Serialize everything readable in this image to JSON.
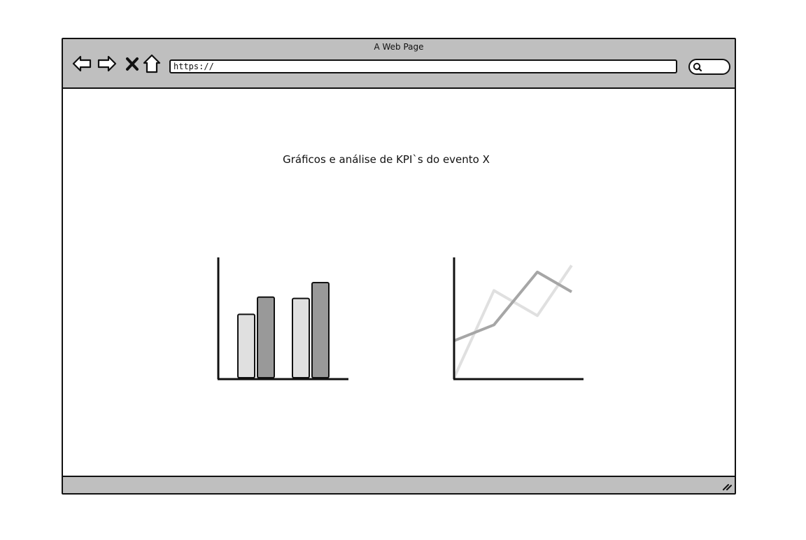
{
  "window": {
    "title": "A Web Page"
  },
  "toolbar": {
    "url": "https://",
    "icons": [
      "back-arrow-icon",
      "forward-arrow-icon",
      "close-x-icon",
      "home-icon",
      "search-icon"
    ]
  },
  "main": {
    "heading": "Gráficos e análise de KPI`s do evento X"
  },
  "colors": {
    "chrome": "#bfbfbf",
    "bar_light": "#e0e0e0",
    "bar_dark": "#999999",
    "line_light": "#e0e0e0",
    "line_dark": "#a6a6a6"
  },
  "chart_data": [
    {
      "type": "bar",
      "categories": [
        "",
        ""
      ],
      "series": [
        {
          "values": [
            48,
            60
          ]
        },
        {
          "values": [
            61,
            72
          ]
        }
      ],
      "ylim": [
        0,
        90
      ]
    },
    {
      "type": "line",
      "x": [
        0,
        1,
        2,
        3,
        4
      ],
      "series": [
        {
          "values": [
            0,
            66,
            47,
            85,
            null
          ]
        },
        {
          "values": [
            28,
            40,
            80,
            65,
            null
          ]
        }
      ],
      "ylim": [
        0,
        90
      ]
    }
  ]
}
